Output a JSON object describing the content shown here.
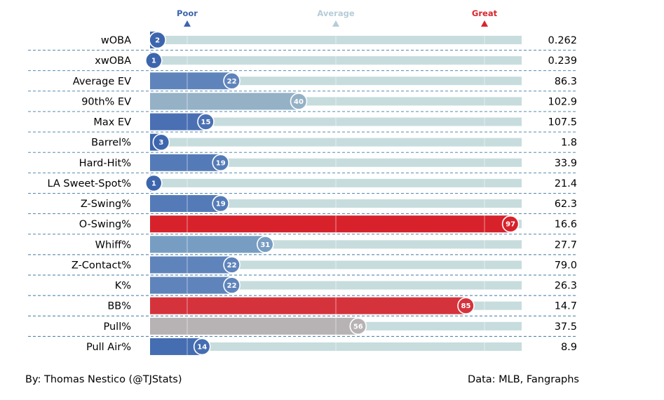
{
  "chart_data": {
    "type": "bar",
    "orientation": "horizontal",
    "title": "",
    "markers": [
      {
        "label": "Poor",
        "value": 10,
        "color": "#3d65ad"
      },
      {
        "label": "Average",
        "value": 50,
        "color": "#b6ccd8"
      },
      {
        "label": "Great",
        "value": 90,
        "color": "#d7262e"
      }
    ],
    "xlim": [
      0,
      100
    ],
    "grid": true,
    "rows": [
      {
        "category": "wOBA",
        "percentile": 2,
        "value": "0.262",
        "color": "#3d65ad"
      },
      {
        "category": "xwOBA",
        "percentile": 1,
        "value": "0.239",
        "color": "#3d65ad"
      },
      {
        "category": "Average EV",
        "percentile": 22,
        "value": "86.3",
        "color": "#5f84bb"
      },
      {
        "category": "90th% EV",
        "percentile": 40,
        "value": "102.9",
        "color": "#94b1c6"
      },
      {
        "category": "Max EV",
        "percentile": 15,
        "value": "107.5",
        "color": "#4a70b3"
      },
      {
        "category": "Barrel%",
        "percentile": 3,
        "value": "1.8",
        "color": "#3e66ae"
      },
      {
        "category": "Hard-Hit%",
        "percentile": 19,
        "value": "33.9",
        "color": "#547bb7"
      },
      {
        "category": "LA Sweet-Spot%",
        "percentile": 1,
        "value": "21.4",
        "color": "#3d65ad"
      },
      {
        "category": "Z-Swing%",
        "percentile": 19,
        "value": "62.3",
        "color": "#547bb7"
      },
      {
        "category": "O-Swing%",
        "percentile": 97,
        "value": "16.6",
        "color": "#d7222c"
      },
      {
        "category": "Whiff%",
        "percentile": 31,
        "value": "27.7",
        "color": "#789dc2"
      },
      {
        "category": "Z-Contact%",
        "percentile": 22,
        "value": "79.0",
        "color": "#5f84bb"
      },
      {
        "category": "K%",
        "percentile": 22,
        "value": "26.3",
        "color": "#5f84bb"
      },
      {
        "category": "BB%",
        "percentile": 85,
        "value": "14.7",
        "color": "#d5333c"
      },
      {
        "category": "Pull%",
        "percentile": 56,
        "value": "37.5",
        "color": "#b7b2b4"
      },
      {
        "category": "Pull Air%",
        "percentile": 14,
        "value": "8.9",
        "color": "#456db1"
      }
    ]
  },
  "track_color": "#c7dcdd",
  "footer": {
    "left": "By: Thomas Nestico (@TJStats)",
    "right": "Data: MLB, Fangraphs"
  }
}
